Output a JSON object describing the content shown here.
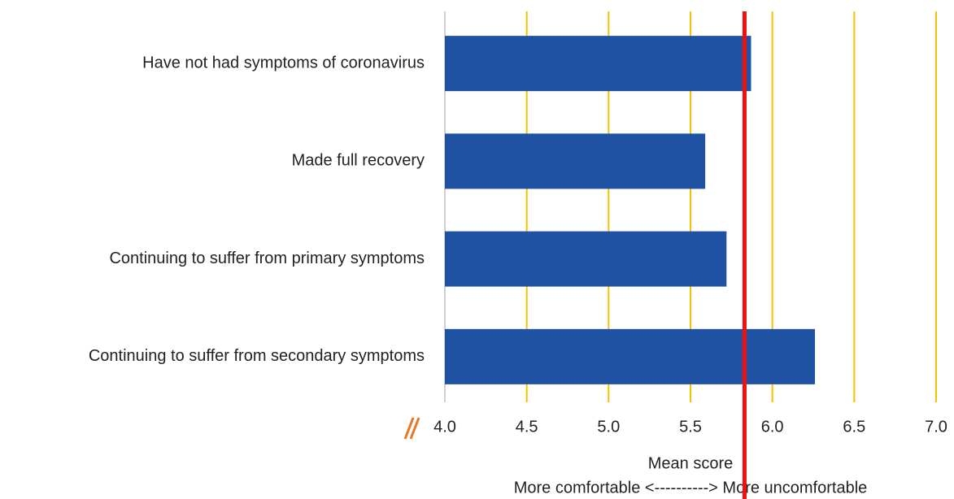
{
  "chart_data": {
    "type": "barh",
    "categories": [
      "Have not had symptoms of coronavirus",
      "Made full recovery",
      "Continuing to suffer from primary symptoms",
      "Continuing to suffer from secondary symptoms"
    ],
    "values": [
      5.87,
      5.59,
      5.72,
      6.26
    ],
    "color": "#1f52a3",
    "xlim": [
      4,
      7
    ],
    "xticks": [
      {
        "value": 4,
        "label": "4.0"
      },
      4.5,
      {
        "value": 5,
        "label": "5.0"
      },
      5.5,
      {
        "value": 6,
        "label": "6.0"
      },
      6.5,
      {
        "value": 7,
        "label": "7.0"
      }
    ],
    "grid": true,
    "grid_color": "#f5c000",
    "xlabel": "Mean score",
    "xlabel_note": "More comfortable <----------> More uncomfortable",
    "reference_line": {
      "value": 5.83,
      "color": "#ee1111"
    }
  }
}
